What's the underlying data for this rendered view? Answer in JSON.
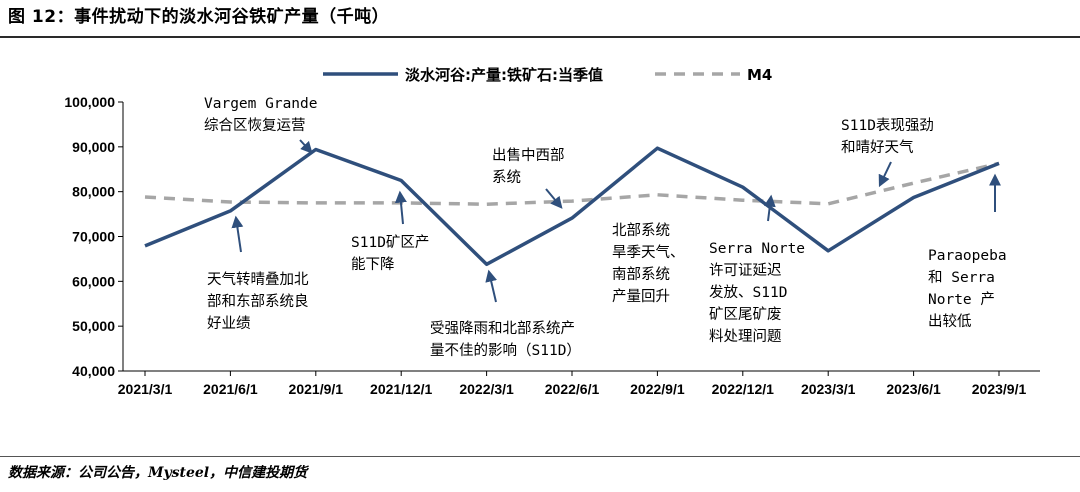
{
  "figure": {
    "title": "图 12：事件扰动下的淡水河谷铁矿产量（千吨）",
    "source": "数据来源：公司公告，Mysteel，中信建投期货"
  },
  "chart_data": {
    "type": "line",
    "title": "",
    "xlabel": "",
    "ylabel": "",
    "x": [
      "2021/3/1",
      "2021/6/1",
      "2021/9/1",
      "2021/12/1",
      "2022/3/1",
      "2022/6/1",
      "2022/9/1",
      "2022/12/1",
      "2023/3/1",
      "2023/6/1",
      "2023/9/1"
    ],
    "ylim": [
      40000,
      100000
    ],
    "yticks": [
      40000,
      50000,
      60000,
      70000,
      80000,
      90000,
      100000
    ],
    "ytick_labels": [
      "40,000",
      "50,000",
      "60,000",
      "70,000",
      "80,000",
      "90,000",
      "100,000"
    ],
    "grid": false,
    "legend_position": "top",
    "series": [
      {
        "name": "淡水河谷:产量:铁矿石:当季值",
        "style": "solid",
        "color": "#2f4f7c",
        "values": [
          67900,
          75700,
          89400,
          82500,
          63800,
          74100,
          89700,
          81000,
          66800,
          78700,
          86300
        ]
      },
      {
        "name": "M4",
        "style": "dashed",
        "color": "#a6a6a6",
        "values": [
          78800,
          77700,
          77500,
          77500,
          77200,
          77900,
          79300,
          78100,
          77300,
          81900,
          86300
        ]
      }
    ],
    "annotations": [
      {
        "lines": [
          "Vargem Grande",
          "综合区恢复运营"
        ],
        "x_index": 2,
        "value": 89400
      },
      {
        "lines": [
          "天气转晴叠加北",
          "部和东部系统良",
          "好业绩"
        ],
        "x_index": 1,
        "value": 75700
      },
      {
        "lines": [
          "S11D矿区产",
          "能下降"
        ],
        "x_index": 3,
        "value": 82500
      },
      {
        "lines": [
          "受强降雨和北部系统产",
          "量不佳的影响（S11D）"
        ],
        "x_index": 4,
        "value": 63800
      },
      {
        "lines": [
          "出售中西部",
          "系统"
        ],
        "x_index": 5,
        "value": 74100
      },
      {
        "lines": [
          "北部系统",
          "旱季天气、",
          "南部系统",
          "产量回升"
        ],
        "x_index": 6,
        "value": 89700
      },
      {
        "lines": [
          "Serra Norte",
          "许可证延迟",
          "发放、S11D",
          "矿区尾矿废",
          "料处理问题"
        ],
        "x_index": 7,
        "value": 81000
      },
      {
        "lines": [
          "S11D表现强劲",
          "和晴好天气"
        ],
        "x_index": 9,
        "value": 78700
      },
      {
        "lines": [
          "Paraopeba",
          "和 Serra",
          "Norte 产",
          "出较低"
        ],
        "x_index": 10,
        "value": 86300
      }
    ]
  }
}
